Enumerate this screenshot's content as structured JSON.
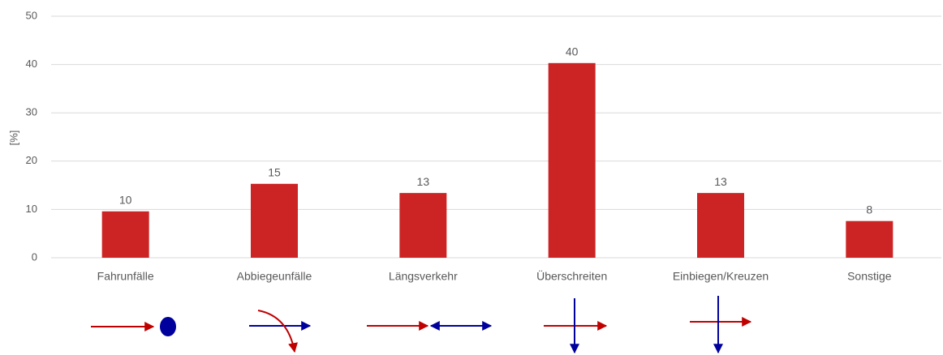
{
  "chart_data": {
    "type": "bar",
    "y_label": "[%]",
    "categories": [
      "Fahrunfälle",
      "Abbiegeunfälle",
      "Längsverkehr",
      "Überschreiten",
      "Einbiegen/Kreuzen",
      "Sonstige"
    ],
    "values": [
      9.6,
      15.3,
      13.4,
      40.3,
      13.4,
      7.6
    ],
    "value_labels": [
      "10",
      "15",
      "13",
      "40",
      "13",
      "8"
    ],
    "color": "#cc2424",
    "ylim": [
      0,
      50
    ],
    "yticks": [
      0,
      10,
      20,
      30,
      40,
      50
    ],
    "grid": true
  }
}
